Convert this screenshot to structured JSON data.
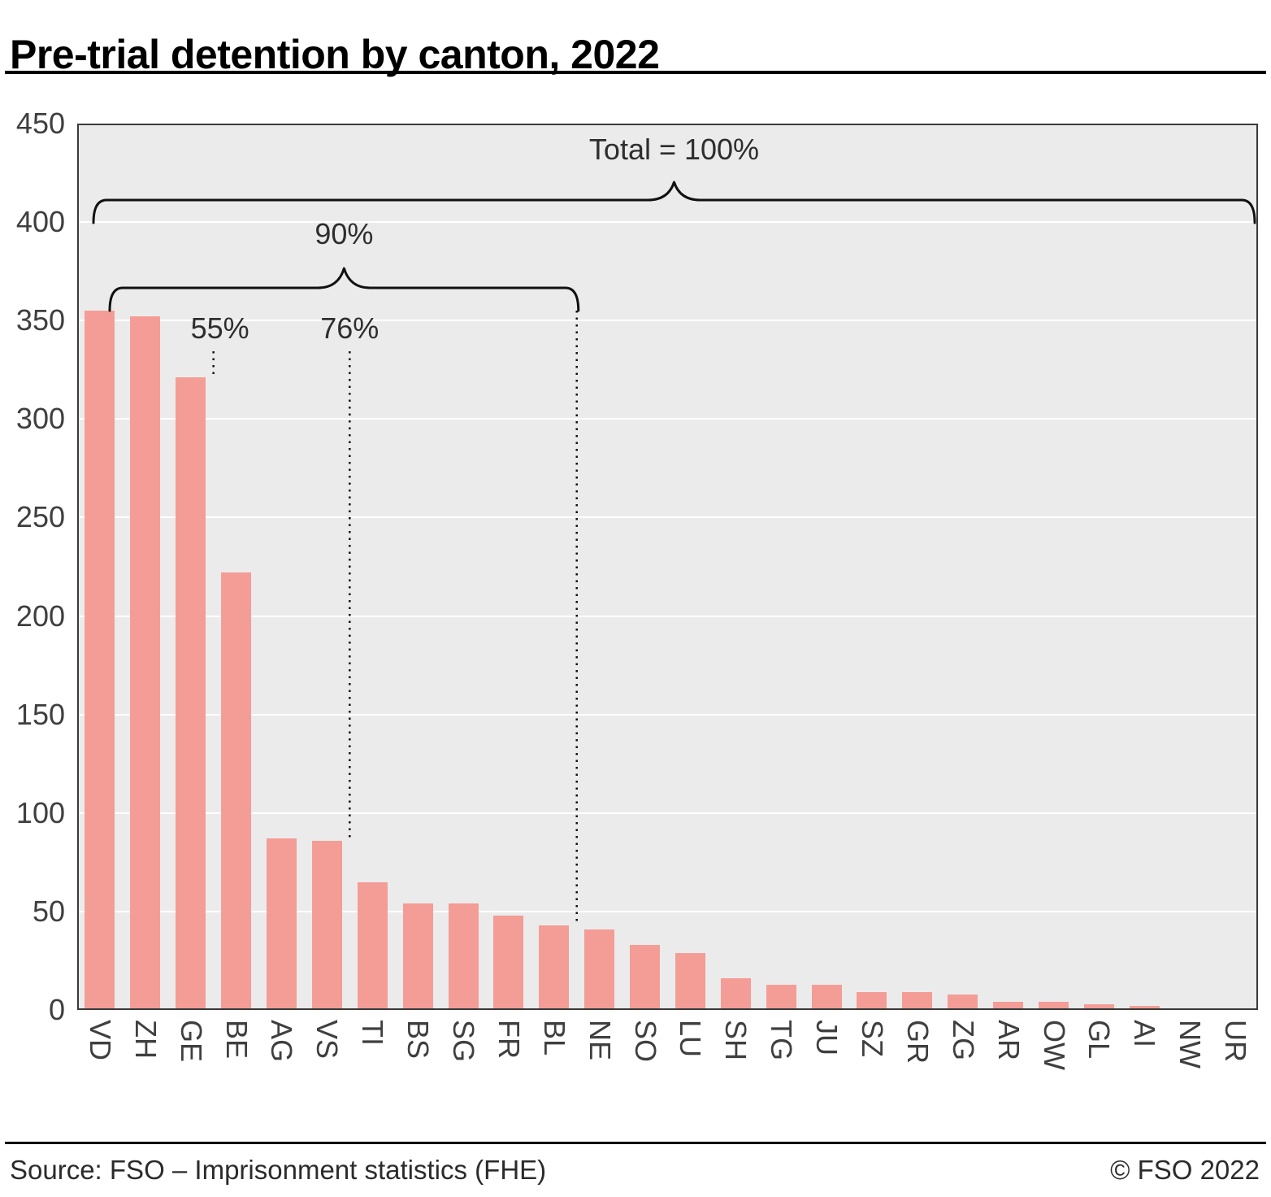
{
  "header": {
    "title": "Pre-trial detention by canton, 2022"
  },
  "footer": {
    "source": "Source: FSO – Imprisonment statistics (FHE)",
    "copyright": "© FSO 2022"
  },
  "chart_data": {
    "type": "bar",
    "title": "Pre-trial detention by canton, 2022",
    "categories": [
      "VD",
      "ZH",
      "GE",
      "BE",
      "AG",
      "VS",
      "TI",
      "BS",
      "SG",
      "FR",
      "BL",
      "NE",
      "SO",
      "LU",
      "SH",
      "TG",
      "JU",
      "SZ",
      "GR",
      "ZG",
      "AR",
      "OW",
      "GL",
      "AI",
      "NW",
      "UR"
    ],
    "values": [
      355,
      352,
      321,
      222,
      87,
      86,
      65,
      54,
      54,
      48,
      43,
      41,
      33,
      29,
      16,
      13,
      13,
      9,
      9,
      8,
      4,
      4,
      3,
      2,
      1,
      0.5
    ],
    "xlabel": "",
    "ylabel": "",
    "ylim": [
      0,
      450
    ],
    "yticks": [
      0,
      50,
      100,
      150,
      200,
      250,
      300,
      350,
      400,
      450
    ],
    "grid": true,
    "legend": "none",
    "colors": {
      "bar": "#f39d96",
      "plot_bg": "#ebebeb",
      "grid": "#ffffff",
      "axis_text": "#3f3f3f",
      "annotation": "#111111"
    },
    "annotations": {
      "total": {
        "label": "Total = 100%",
        "brace_from_index": 0,
        "brace_to_index": 25
      },
      "p90": {
        "label": "90%",
        "brace_from_index": 0,
        "brace_to_index": 10,
        "line_after_index": 10
      },
      "p76": {
        "label": "76%",
        "line_after_index": 5
      },
      "p55": {
        "label": "55%",
        "line_after_index": 2
      }
    }
  }
}
